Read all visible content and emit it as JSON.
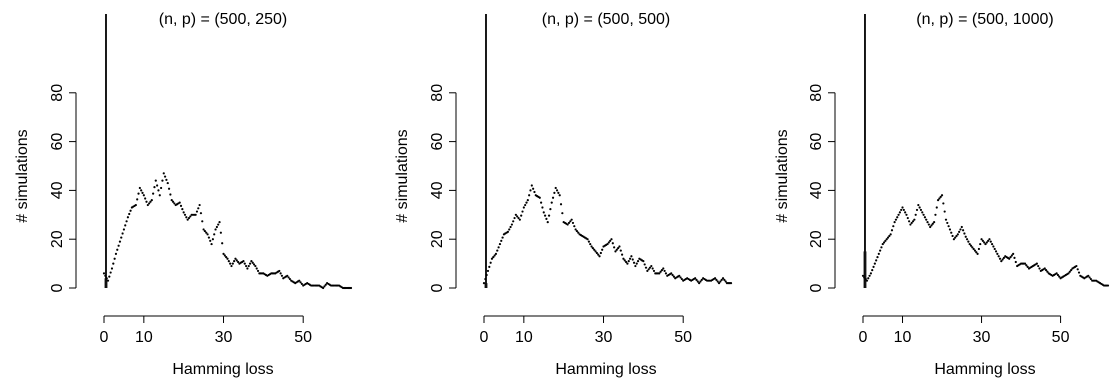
{
  "colors": {
    "foreground": "#000000",
    "hist_bar": "#999999",
    "background": "#ffffff"
  },
  "chart_data": [
    {
      "type": "line",
      "title": "(n, p) = (500, 250)",
      "xlabel": "Hamming loss",
      "ylabel": "# simulations",
      "xlim": [
        0,
        62
      ],
      "ylim": [
        0,
        100
      ],
      "xticks": [
        "0",
        "10",
        "30",
        "50"
      ],
      "yticks": [
        "0",
        "20",
        "40",
        "60",
        "80"
      ],
      "vertical_line_x": 0.5,
      "hist_bars": [
        {
          "x0": 0,
          "x1": 1,
          "value": 4
        }
      ],
      "series": [
        {
          "style": "dotted",
          "x": [
            0,
            1,
            2,
            3,
            4,
            5,
            6,
            7,
            8,
            9,
            10,
            11,
            12,
            13,
            14,
            15,
            16,
            17,
            18,
            19,
            20,
            21,
            22,
            23,
            24,
            25,
            26,
            27,
            28,
            29,
            30,
            31,
            32,
            33,
            34,
            35,
            36,
            37,
            38,
            39,
            40,
            41,
            42,
            43,
            44,
            45,
            46,
            47,
            48,
            49,
            50,
            51,
            52,
            53,
            54,
            55,
            56,
            57,
            58,
            59,
            60,
            61,
            62
          ],
          "values": [
            6,
            3,
            8,
            14,
            19,
            24,
            29,
            33,
            34,
            41,
            38,
            34,
            36,
            44,
            38,
            47,
            43,
            36,
            34,
            35,
            31,
            28,
            30,
            30,
            34,
            24,
            22,
            18,
            24,
            27,
            14,
            12,
            9,
            12,
            10,
            11,
            8,
            11,
            9,
            6,
            6,
            5,
            6,
            6,
            7,
            4,
            5,
            3,
            2,
            3,
            1,
            2,
            1,
            1,
            1,
            0,
            2,
            1,
            1,
            1,
            0,
            0,
            0
          ]
        }
      ]
    },
    {
      "type": "line",
      "title": "(n, p) = (500, 500)",
      "xlabel": "Hamming loss",
      "ylabel": "# simulations",
      "xlim": [
        0,
        62
      ],
      "ylim": [
        0,
        100
      ],
      "xticks": [
        "0",
        "10",
        "30",
        "50"
      ],
      "yticks": [
        "0",
        "20",
        "40",
        "60",
        "80"
      ],
      "vertical_line_x": 0.5,
      "hist_bars": [
        {
          "x0": 0,
          "x1": 1,
          "value": 2
        }
      ],
      "series": [
        {
          "style": "dotted",
          "x": [
            0,
            1,
            2,
            3,
            4,
            5,
            6,
            7,
            8,
            9,
            10,
            11,
            12,
            13,
            14,
            15,
            16,
            17,
            18,
            19,
            20,
            21,
            22,
            23,
            24,
            25,
            26,
            27,
            28,
            29,
            30,
            31,
            32,
            33,
            34,
            35,
            36,
            37,
            38,
            39,
            40,
            41,
            42,
            43,
            44,
            45,
            46,
            47,
            48,
            49,
            50,
            51,
            52,
            53,
            54,
            55,
            56,
            57,
            58,
            59,
            60,
            61,
            62
          ],
          "values": [
            2,
            7,
            12,
            14,
            18,
            22,
            23,
            26,
            30,
            28,
            33,
            36,
            42,
            38,
            37,
            31,
            27,
            35,
            41,
            38,
            27,
            26,
            28,
            24,
            22,
            21,
            20,
            17,
            15,
            13,
            17,
            18,
            20,
            15,
            17,
            12,
            10,
            13,
            9,
            12,
            11,
            7,
            9,
            6,
            6,
            8,
            5,
            6,
            4,
            5,
            3,
            4,
            3,
            4,
            2,
            4,
            3,
            3,
            4,
            2,
            4,
            2,
            2
          ]
        }
      ]
    },
    {
      "type": "line",
      "title": "(n, p) = (500, 1000)",
      "xlabel": "Hamming loss",
      "ylabel": "# simulations",
      "xlim": [
        0,
        62
      ],
      "ylim": [
        0,
        100
      ],
      "xticks": [
        "0",
        "10",
        "30",
        "50"
      ],
      "yticks": [
        "0",
        "20",
        "40",
        "60",
        "80"
      ],
      "vertical_line_x": 0.5,
      "hist_bars": [
        {
          "x0": 0,
          "x1": 1,
          "value": 15
        }
      ],
      "series": [
        {
          "style": "dotted",
          "x": [
            0,
            1,
            2,
            3,
            4,
            5,
            6,
            7,
            8,
            9,
            10,
            11,
            12,
            13,
            14,
            15,
            16,
            17,
            18,
            19,
            20,
            21,
            22,
            23,
            24,
            25,
            26,
            27,
            28,
            29,
            30,
            31,
            32,
            33,
            34,
            35,
            36,
            37,
            38,
            39,
            40,
            41,
            42,
            43,
            44,
            45,
            46,
            47,
            48,
            49,
            50,
            51,
            52,
            53,
            54,
            55,
            56,
            57,
            58,
            59,
            60,
            61,
            62
          ],
          "values": [
            5,
            3,
            6,
            10,
            14,
            18,
            20,
            22,
            27,
            30,
            33,
            30,
            26,
            28,
            34,
            31,
            28,
            25,
            27,
            36,
            38,
            28,
            24,
            20,
            22,
            25,
            21,
            18,
            16,
            14,
            20,
            18,
            20,
            17,
            14,
            11,
            13,
            12,
            14,
            9,
            10,
            10,
            8,
            9,
            10,
            7,
            8,
            6,
            5,
            6,
            4,
            5,
            6,
            8,
            9,
            5,
            4,
            5,
            3,
            3,
            2,
            1,
            1
          ]
        }
      ]
    }
  ]
}
